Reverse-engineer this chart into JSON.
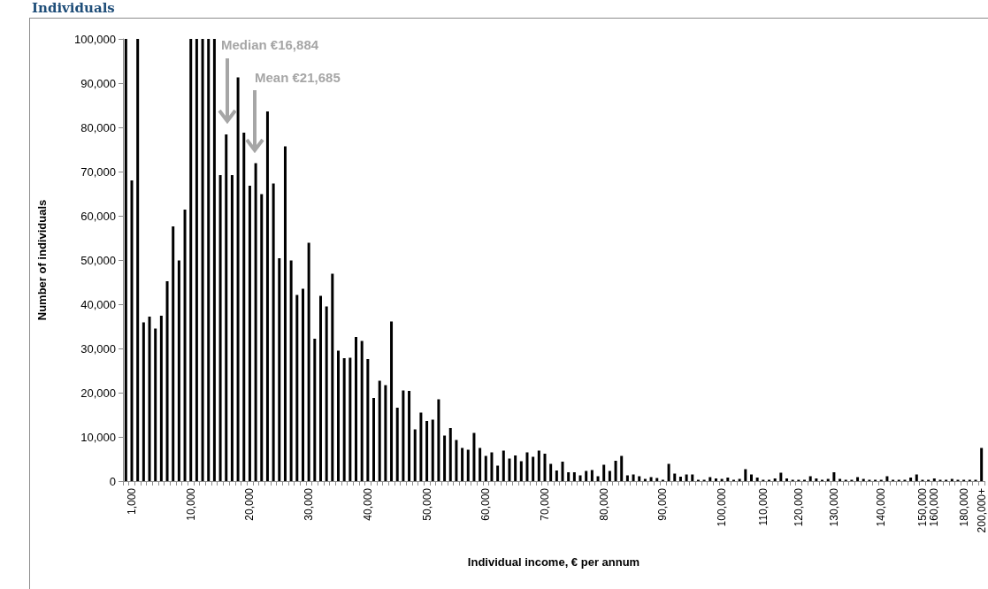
{
  "chart_data": {
    "type": "bar",
    "title": "Individuals",
    "xlabel": "Individual income, € per annum",
    "ylabel": "Number of individuals",
    "annotations": [
      "Median €16,884",
      "Mean €21,685"
    ],
    "categories": [
      null,
      "1,000",
      null,
      null,
      null,
      null,
      null,
      null,
      null,
      null,
      null,
      "10,000",
      null,
      null,
      null,
      null,
      null,
      null,
      null,
      null,
      null,
      "20,000",
      null,
      null,
      null,
      null,
      null,
      null,
      null,
      null,
      null,
      "30,000",
      null,
      null,
      null,
      null,
      null,
      null,
      null,
      null,
      null,
      "40,000",
      null,
      null,
      null,
      null,
      null,
      null,
      null,
      null,
      null,
      "50,000",
      null,
      null,
      null,
      null,
      null,
      null,
      null,
      null,
      null,
      "60,000",
      null,
      null,
      null,
      null,
      null,
      null,
      null,
      null,
      null,
      "70,000",
      null,
      null,
      null,
      null,
      null,
      null,
      null,
      null,
      null,
      "80,000",
      null,
      null,
      null,
      null,
      null,
      null,
      null,
      null,
      null,
      "90,000",
      null,
      null,
      null,
      null,
      null,
      null,
      null,
      null,
      null,
      "100,000",
      null,
      null,
      null,
      null,
      null,
      null,
      "110,000",
      null,
      null,
      null,
      null,
      null,
      "120,000",
      null,
      null,
      null,
      null,
      null,
      "130,000",
      null,
      null,
      null,
      null,
      null,
      null,
      null,
      "140,000",
      null,
      null,
      null,
      null,
      null,
      null,
      "150,000",
      null,
      "160,000",
      null,
      null,
      null,
      null,
      "180,000",
      null,
      null,
      "200,000+"
    ],
    "values": [
      100000,
      68000,
      100000,
      35900,
      37200,
      34500,
      37400,
      45200,
      57600,
      49900,
      61400,
      100000,
      100000,
      100000,
      100000,
      100000,
      69200,
      78400,
      69200,
      91300,
      78800,
      66800,
      71900,
      64900,
      83600,
      67300,
      50400,
      75700,
      49900,
      42100,
      43500,
      53900,
      32200,
      41900,
      39500,
      46900,
      29500,
      27800,
      27900,
      32600,
      31700,
      27600,
      18800,
      22700,
      21700,
      36100,
      16600,
      20500,
      20400,
      11700,
      15500,
      13600,
      13900,
      18500,
      10300,
      12000,
      9300,
      7500,
      7100,
      10900,
      7500,
      5700,
      6500,
      3500,
      6900,
      5100,
      5800,
      4500,
      6500,
      5500,
      6900,
      6200,
      3900,
      2400,
      4400,
      2000,
      2000,
      1300,
      2300,
      2500,
      1100,
      3700,
      2300,
      4600,
      5700,
      1300,
      1500,
      1100,
      500,
      900,
      700,
      300,
      3900,
      1700,
      1000,
      1500,
      1500,
      300,
      300,
      900,
      600,
      500,
      800,
      300,
      500,
      2700,
      1500,
      800,
      300,
      300,
      600,
      1900,
      600,
      300,
      300,
      300,
      1100,
      600,
      300,
      500,
      2000,
      500,
      300,
      300,
      900,
      500,
      300,
      300,
      300,
      1100,
      300,
      300,
      300,
      800,
      1500,
      300,
      300,
      600,
      300,
      300,
      500,
      300,
      300,
      300,
      300,
      7500
    ],
    "color": "#000000",
    "ylim": [
      0,
      100000
    ],
    "yticks": [
      {
        "value": 0,
        "label": "0"
      },
      {
        "value": 10000,
        "label": "10,000"
      },
      {
        "value": 20000,
        "label": "20,000"
      },
      {
        "value": 30000,
        "label": "30,000"
      },
      {
        "value": 40000,
        "label": "40,000"
      },
      {
        "value": 50000,
        "label": "50,000"
      },
      {
        "value": 60000,
        "label": "60,000"
      },
      {
        "value": 70000,
        "label": "70,000"
      },
      {
        "value": 80000,
        "label": "80,000"
      },
      {
        "value": 90000,
        "label": "90,000"
      },
      {
        "value": 100000,
        "label": "100,000"
      }
    ],
    "grid": false
  }
}
